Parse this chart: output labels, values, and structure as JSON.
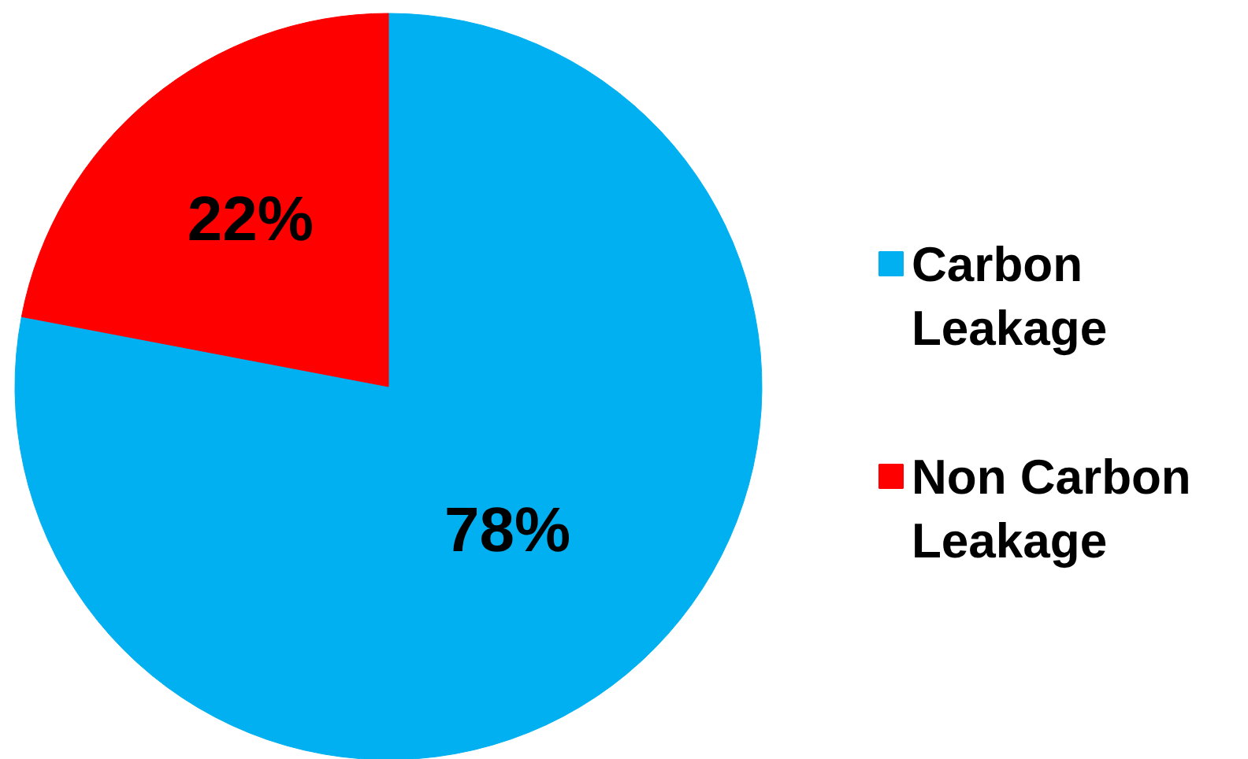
{
  "chart_data": {
    "type": "pie",
    "categories": [
      "Carbon Leakage",
      "Non Carbon Leakage"
    ],
    "values": [
      78,
      22
    ],
    "colors": [
      "#00b0f0",
      "#ff0000"
    ],
    "value_labels": [
      "78%",
      "22%"
    ],
    "legend": "right"
  }
}
